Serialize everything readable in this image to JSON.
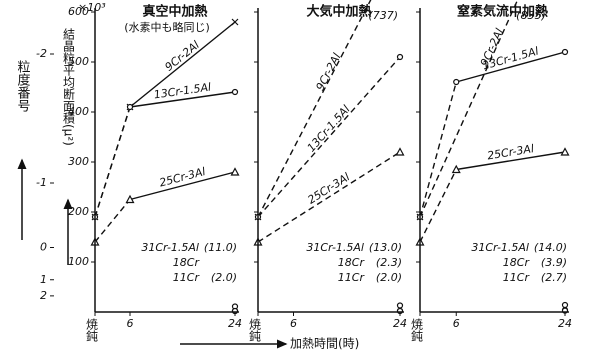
{
  "chart_data": [
    {
      "type": "line",
      "title": "真空中加熱",
      "subtitle": "(水素中も略同じ)",
      "y_label": "結晶粒平均断面積(μ²)",
      "y_unit": "×10³",
      "y2_label": "粒度番号",
      "x_label": "加熱時間(時)",
      "color": "#111111",
      "x": [
        0,
        6,
        24
      ],
      "xlim": [
        0,
        24
      ],
      "xticks": [
        {
          "value": 0,
          "label": "焼鈍"
        },
        6,
        24
      ],
      "ylim": [
        0,
        600
      ],
      "yticks": [
        100,
        200,
        300,
        400,
        500,
        600
      ],
      "y2ticks": [
        -2,
        -1,
        0,
        1,
        2
      ],
      "series": [
        {
          "name": "9Cr-2Al",
          "values": [
            190,
            410,
            580
          ]
        },
        {
          "name": "13Cr-1.5Al",
          "values": [
            190,
            410,
            440
          ]
        },
        {
          "name": "25Cr-3Al",
          "values": [
            140,
            225,
            280
          ]
        },
        {
          "name": "31Cr-1.5Al",
          "values": [
            null,
            null,
            11.0
          ],
          "value_labels": [
            null,
            null,
            "(11.0)"
          ]
        },
        {
          "name": "18Cr",
          "values": [
            null,
            null,
            2.0
          ]
        },
        {
          "name": "11Cr",
          "values": [
            null,
            null,
            2.0
          ],
          "value_labels": [
            null,
            null,
            "(2.0)"
          ]
        }
      ]
    },
    {
      "type": "line",
      "title": "大気中加熱",
      "color": "#111111",
      "x": [
        0,
        6,
        24
      ],
      "xlim": [
        0,
        24
      ],
      "xticks": [
        {
          "value": 0,
          "label": "焼鈍"
        },
        6,
        24
      ],
      "ylim": [
        0,
        600
      ],
      "series": [
        {
          "name": "9Cr-2Al",
          "values": [
            190,
            null,
            737
          ],
          "value_labels": [
            null,
            null,
            "(737)"
          ]
        },
        {
          "name": "13Cr-1.5Al",
          "values": [
            190,
            null,
            510
          ]
        },
        {
          "name": "25Cr-3Al",
          "values": [
            140,
            null,
            320
          ]
        },
        {
          "name": "31Cr-1.5Al",
          "values": [
            null,
            null,
            13.0
          ],
          "value_labels": [
            null,
            null,
            "(13.0)"
          ]
        },
        {
          "name": "18Cr",
          "values": [
            null,
            null,
            2.3
          ],
          "value_labels": [
            null,
            null,
            "(2.3)"
          ]
        },
        {
          "name": "11Cr",
          "values": [
            null,
            null,
            2.0
          ],
          "value_labels": [
            null,
            null,
            "(2.0)"
          ]
        }
      ]
    },
    {
      "type": "line",
      "title": "窒素気流中加熱",
      "color": "#111111",
      "x": [
        0,
        6,
        24
      ],
      "xlim": [
        0,
        24
      ],
      "xticks": [
        {
          "value": 0,
          "label": "焼鈍"
        },
        6,
        24
      ],
      "ylim": [
        0,
        600
      ],
      "series": [
        {
          "name": "9Cr-2Al",
          "values": [
            190,
            null,
            835
          ],
          "value_labels": [
            null,
            null,
            "(835)"
          ]
        },
        {
          "name": "13Cr-1.5Al",
          "values": [
            190,
            460,
            520
          ]
        },
        {
          "name": "25Cr-3Al",
          "values": [
            140,
            285,
            320
          ]
        },
        {
          "name": "31Cr-1.5Al",
          "values": [
            null,
            null,
            14.0
          ],
          "value_labels": [
            null,
            null,
            "(14.0)"
          ]
        },
        {
          "name": "18Cr",
          "values": [
            null,
            null,
            3.9
          ],
          "value_labels": [
            null,
            null,
            "(3.9)"
          ]
        },
        {
          "name": "11Cr",
          "values": [
            null,
            null,
            2.7
          ],
          "value_labels": [
            null,
            null,
            "(2.7)"
          ]
        }
      ]
    }
  ]
}
